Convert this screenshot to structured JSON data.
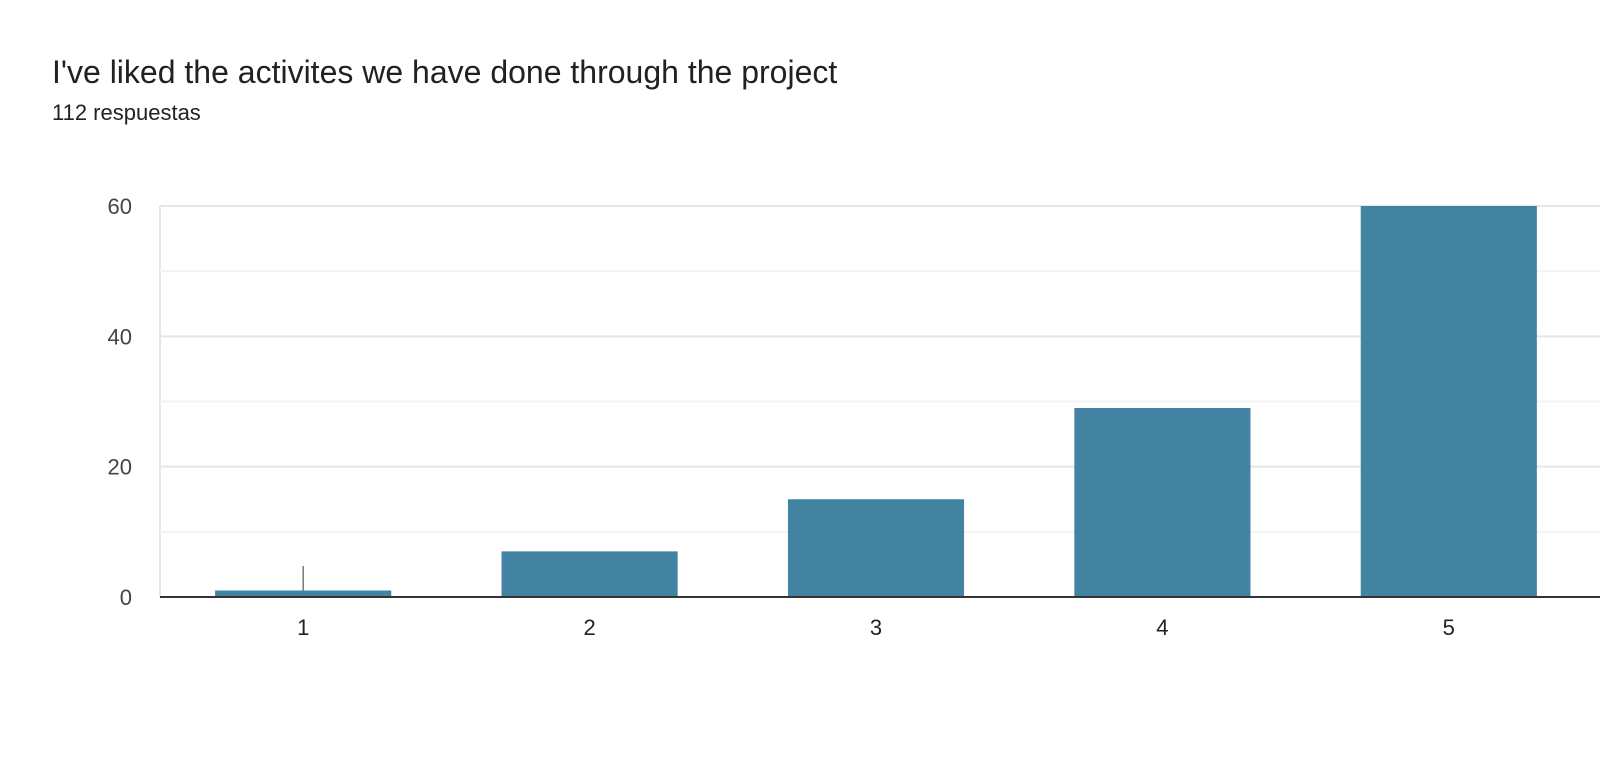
{
  "chart_title": "I've liked the activites we have done through the project",
  "chart_subtitle": "112 respuestas",
  "chart_data": {
    "type": "bar",
    "title": "I've liked the activites we have done through the project",
    "subtitle": "112 respuestas",
    "categories": [
      "1",
      "2",
      "3",
      "4",
      "5"
    ],
    "values": [
      1,
      7,
      15,
      29,
      60
    ],
    "ylim": [
      0,
      60
    ],
    "yticks": [
      0,
      20,
      40,
      60
    ],
    "xlabel": "",
    "ylabel": "",
    "grid": true,
    "bar_color": "#4283a1",
    "colors": {
      "grid_major": "#e6e6e6",
      "grid_minor": "#f3f3f3",
      "axis": "#333333",
      "highlight_line": "#777777"
    }
  }
}
